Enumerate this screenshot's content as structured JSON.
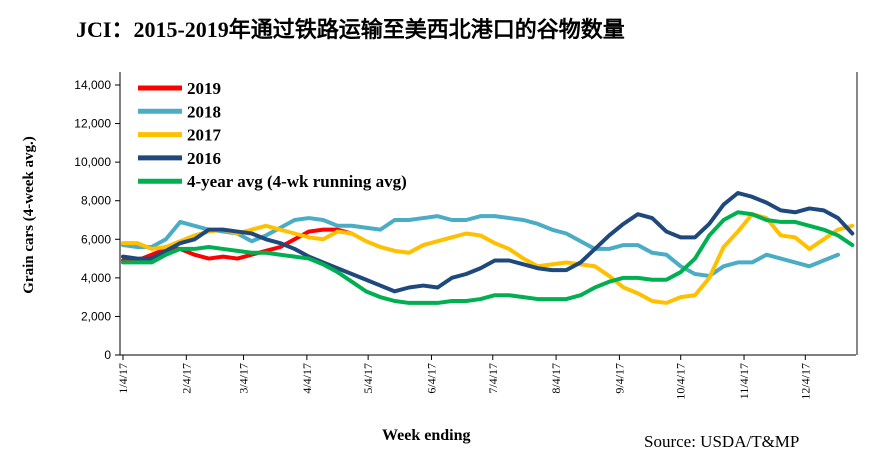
{
  "chart_data": {
    "type": "line",
    "title": "JCI：2015-2019年通过铁路运输至美西北港口的谷物数量",
    "xlabel": "Week ending",
    "ylabel": "Grain cars (4-week avg.)",
    "source": "Source: USDA/T&MP",
    "ylim": [
      0,
      14000
    ],
    "yticks": [
      "0",
      "2,000",
      "4,000",
      "6,000",
      "8,000",
      "10,000",
      "12,000",
      "14,000"
    ],
    "ytick_values": [
      0,
      2000,
      4000,
      6000,
      8000,
      10000,
      12000,
      14000
    ],
    "xticks": [
      "1/4/17",
      "2/4/17",
      "3/4/17",
      "4/4/17",
      "5/4/17",
      "6/4/17",
      "7/4/17",
      "8/4/17",
      "9/4/17",
      "10/4/17",
      "11/4/17",
      "12/4/17"
    ],
    "x_start": "2017-01-04",
    "x_step_days": 7,
    "grid": false,
    "legend": "top-left",
    "series": [
      {
        "name": "2019",
        "color": "#ff0000",
        "values": [
          4900,
          4900,
          5200,
          5500,
          5500,
          5200,
          5000,
          5100,
          5000,
          5200,
          5400,
          5600,
          6000,
          6400,
          6500,
          6500,
          6300
        ]
      },
      {
        "name": "2018",
        "color": "#4bacc6",
        "values": [
          5700,
          5600,
          5600,
          6000,
          6900,
          6700,
          6500,
          6400,
          6300,
          5900,
          6200,
          6600,
          7000,
          7100,
          7000,
          6700,
          6700,
          6600,
          6500,
          7000,
          7000,
          7100,
          7200,
          7000,
          7000,
          7200,
          7200,
          7100,
          7000,
          6800,
          6500,
          6300,
          5900,
          5500,
          5500,
          5700,
          5700,
          5300,
          5200,
          4600,
          4200,
          4100,
          4600,
          4800,
          4800,
          5200,
          5000,
          4800,
          4600,
          4900,
          5200
        ]
      },
      {
        "name": "2017",
        "color": "#ffc000",
        "values": [
          5800,
          5800,
          5500,
          5600,
          5900,
          6200,
          6400,
          6500,
          6300,
          6500,
          6700,
          6500,
          6300,
          6100,
          6000,
          6400,
          6300,
          5900,
          5600,
          5400,
          5300,
          5700,
          5900,
          6100,
          6300,
          6200,
          5800,
          5500,
          5000,
          4600,
          4700,
          4800,
          4700,
          4600,
          4100,
          3500,
          3200,
          2800,
          2700,
          3000,
          3100,
          4000,
          5600,
          6400,
          7300,
          7100,
          6200,
          6100,
          5500,
          6000,
          6500,
          6700
        ]
      },
      {
        "name": "2016",
        "color": "#1f497d",
        "values": [
          5100,
          5000,
          5000,
          5400,
          5800,
          6000,
          6500,
          6500,
          6400,
          6300,
          6000,
          5800,
          5500,
          5100,
          4800,
          4500,
          4200,
          3900,
          3600,
          3300,
          3500,
          3600,
          3500,
          4000,
          4200,
          4500,
          4900,
          4900,
          4700,
          4500,
          4400,
          4400,
          4800,
          5500,
          6200,
          6800,
          7300,
          7100,
          6400,
          6100,
          6100,
          6800,
          7800,
          8400,
          8200,
          7900,
          7500,
          7400,
          7600,
          7500,
          7100,
          6300
        ]
      },
      {
        "name": "4-year avg (4-wk running avg)",
        "color": "#00b050",
        "values": [
          4800,
          4800,
          4800,
          5200,
          5500,
          5500,
          5600,
          5500,
          5400,
          5300,
          5300,
          5200,
          5100,
          5000,
          4700,
          4300,
          3800,
          3300,
          3000,
          2800,
          2700,
          2700,
          2700,
          2800,
          2800,
          2900,
          3100,
          3100,
          3000,
          2900,
          2900,
          2900,
          3100,
          3500,
          3800,
          4000,
          4000,
          3900,
          3900,
          4300,
          5000,
          6200,
          7000,
          7400,
          7300,
          7000,
          6900,
          6900,
          6700,
          6500,
          6200,
          5700
        ]
      }
    ]
  }
}
